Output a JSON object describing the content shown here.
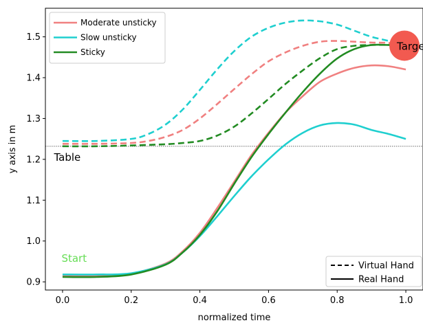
{
  "chart_data": {
    "type": "line",
    "xlabel": "normalized time",
    "ylabel": "y axis in m",
    "xlim": [
      -0.05,
      1.05
    ],
    "ylim": [
      0.88,
      1.57
    ],
    "xticks": [
      "0.0",
      "0.2",
      "0.4",
      "0.6",
      "0.8",
      "1.0"
    ],
    "yticks": [
      "0.9",
      "1.0",
      "1.1",
      "1.2",
      "1.3",
      "1.4",
      "1.5"
    ],
    "grid": false,
    "legend_position": "top-left",
    "style_legend_position": "bottom-right",
    "table_level": 1.232,
    "annotations": {
      "table": "Table",
      "start": "Start",
      "target": "Target"
    },
    "target_point": {
      "x": 1.0,
      "y": 1.48
    },
    "colors": {
      "moderate": "#f08080",
      "slow": "#1fcfcf",
      "sticky": "#228b22",
      "start": "#66dd55",
      "target": "#f25a50"
    },
    "series": [
      {
        "name": "Moderate unsticky",
        "style": "Real Hand",
        "color": "moderate",
        "x": [
          0,
          0.1,
          0.2,
          0.3,
          0.35,
          0.4,
          0.45,
          0.5,
          0.55,
          0.6,
          0.65,
          0.7,
          0.75,
          0.8,
          0.85,
          0.9,
          0.95,
          1.0
        ],
        "y": [
          0.915,
          0.915,
          0.92,
          0.945,
          0.975,
          1.02,
          1.08,
          1.145,
          1.21,
          1.265,
          1.315,
          1.355,
          1.39,
          1.41,
          1.424,
          1.43,
          1.428,
          1.42
        ]
      },
      {
        "name": "Slow unsticky",
        "style": "Real Hand",
        "color": "slow",
        "x": [
          0,
          0.1,
          0.2,
          0.3,
          0.35,
          0.4,
          0.45,
          0.5,
          0.55,
          0.6,
          0.65,
          0.7,
          0.75,
          0.8,
          0.85,
          0.9,
          0.95,
          1.0
        ],
        "y": [
          0.918,
          0.918,
          0.921,
          0.943,
          0.972,
          1.012,
          1.06,
          1.11,
          1.158,
          1.2,
          1.237,
          1.265,
          1.283,
          1.289,
          1.285,
          1.272,
          1.262,
          1.25
        ]
      },
      {
        "name": "Sticky",
        "style": "Real Hand",
        "color": "sticky",
        "x": [
          0,
          0.1,
          0.2,
          0.3,
          0.35,
          0.4,
          0.45,
          0.5,
          0.55,
          0.6,
          0.65,
          0.7,
          0.75,
          0.8,
          0.85,
          0.9,
          0.95,
          1.0
        ],
        "y": [
          0.912,
          0.912,
          0.918,
          0.942,
          0.972,
          1.015,
          1.072,
          1.14,
          1.205,
          1.262,
          1.315,
          1.365,
          1.41,
          1.447,
          1.47,
          1.48,
          1.48,
          1.478
        ]
      },
      {
        "name": "Moderate unsticky",
        "style": "Virtual Hand",
        "color": "moderate",
        "x": [
          0,
          0.1,
          0.2,
          0.25,
          0.3,
          0.35,
          0.4,
          0.45,
          0.5,
          0.55,
          0.6,
          0.65,
          0.7,
          0.75,
          0.8,
          0.85,
          0.9,
          0.95,
          1.0
        ],
        "y": [
          1.238,
          1.238,
          1.24,
          1.245,
          1.255,
          1.272,
          1.3,
          1.335,
          1.372,
          1.408,
          1.44,
          1.462,
          1.478,
          1.488,
          1.49,
          1.488,
          1.486,
          1.485,
          1.48
        ]
      },
      {
        "name": "Slow unsticky",
        "style": "Virtual Hand",
        "color": "slow",
        "x": [
          0,
          0.1,
          0.2,
          0.25,
          0.3,
          0.35,
          0.4,
          0.45,
          0.5,
          0.55,
          0.6,
          0.65,
          0.7,
          0.75,
          0.8,
          0.85,
          0.9,
          0.95,
          1.0
        ],
        "y": [
          1.245,
          1.245,
          1.25,
          1.262,
          1.285,
          1.322,
          1.37,
          1.42,
          1.465,
          1.5,
          1.522,
          1.535,
          1.54,
          1.538,
          1.53,
          1.515,
          1.5,
          1.49,
          1.478
        ]
      },
      {
        "name": "Sticky",
        "style": "Virtual Hand",
        "color": "sticky",
        "x": [
          0,
          0.1,
          0.2,
          0.3,
          0.35,
          0.4,
          0.45,
          0.5,
          0.55,
          0.6,
          0.65,
          0.7,
          0.75,
          0.8,
          0.85,
          0.9,
          0.95,
          1.0
        ],
        "y": [
          1.232,
          1.232,
          1.234,
          1.237,
          1.24,
          1.245,
          1.258,
          1.28,
          1.312,
          1.348,
          1.385,
          1.418,
          1.448,
          1.47,
          1.478,
          1.48,
          1.48,
          1.478
        ]
      }
    ],
    "legend": {
      "entries": [
        {
          "label": "Moderate unsticky",
          "color": "moderate"
        },
        {
          "label": "Slow unsticky",
          "color": "slow"
        },
        {
          "label": "Sticky",
          "color": "sticky"
        }
      ],
      "style_entries": [
        {
          "label": "Virtual Hand",
          "dash": true
        },
        {
          "label": "Real Hand",
          "dash": false
        }
      ]
    }
  }
}
